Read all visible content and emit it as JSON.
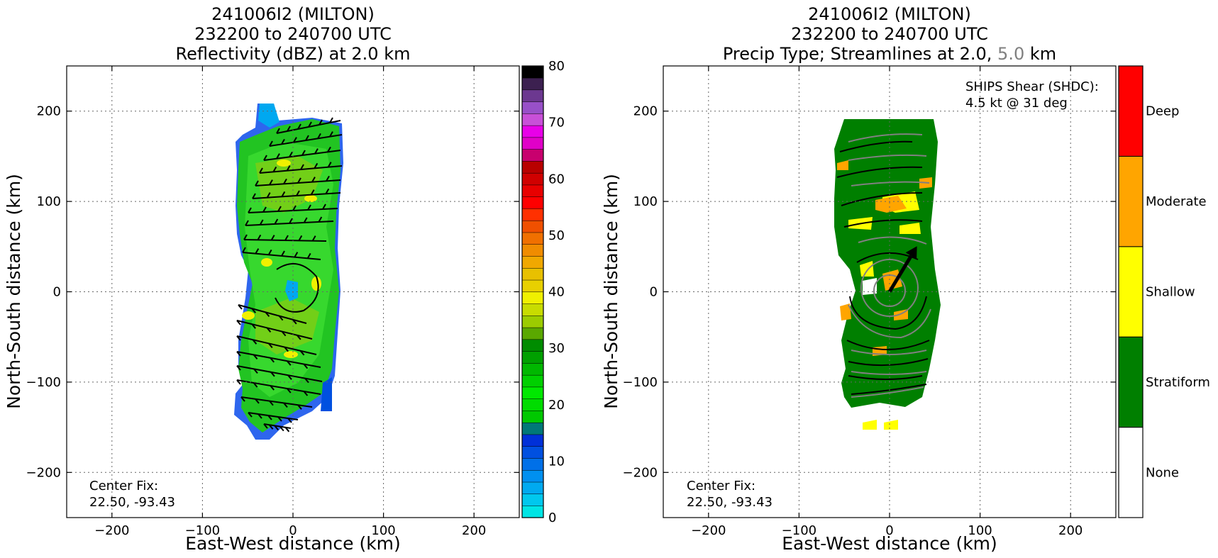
{
  "chart_data": [
    {
      "type": "heatmap",
      "title_lines": [
        "241006I2 (MILTON)",
        "232200 to 240700 UTC",
        "Reflectivity (dBZ) at 2.0 km"
      ],
      "xlabel": "East-West distance (km)",
      "ylabel": "North-South distance (km)",
      "xlim": [
        -250,
        250
      ],
      "ylim": [
        -250,
        250
      ],
      "xticks": [
        -200,
        -100,
        0,
        100,
        200
      ],
      "yticks": [
        -200,
        -100,
        0,
        100,
        200
      ],
      "xtick_labels": [
        "−200",
        "−100",
        "0",
        "100",
        "200"
      ],
      "ytick_labels": [
        "−200",
        "−100",
        "0",
        "100",
        "200"
      ],
      "grid": true,
      "annotation_lines": [
        "Center Fix:",
        "22.50, -93.43"
      ],
      "colorbar": {
        "range": [
          0,
          80
        ],
        "tick_values": [
          0,
          10,
          20,
          30,
          40,
          50,
          60,
          70,
          80
        ],
        "tick_labels": [
          "0",
          "10",
          "20",
          "30",
          "40",
          "50",
          "60",
          "70",
          "80"
        ],
        "colors": [
          "#00e5e5",
          "#00c8ee",
          "#00aaf0",
          "#0090f0",
          "#0070e8",
          "#0050e0",
          "#0030d8",
          "#007878",
          "#00c800",
          "#00dc00",
          "#00e800",
          "#00d000",
          "#00b800",
          "#00a000",
          "#008c00",
          "#5aa800",
          "#9ccc00",
          "#c8dc00",
          "#f0f000",
          "#e8d000",
          "#e8c000",
          "#f0a800",
          "#f08c00",
          "#f07000",
          "#f05000",
          "#ff3000",
          "#ff0000",
          "#e80000",
          "#d00000",
          "#b80000",
          "#c8006e",
          "#e000c8",
          "#e800e8",
          "#c850d8",
          "#9850c8",
          "#6c3890",
          "#3c2050",
          "#000000"
        ]
      }
    },
    {
      "type": "heatmap",
      "title_lines": [
        "241006I2 (MILTON)",
        "232200 to 240700 UTC"
      ],
      "title_line3_parts": [
        "Precip Type; Streamlines at 2.0, ",
        "5.0",
        " km"
      ],
      "xlabel": "East-West distance (km)",
      "ylabel": "North-South distance (km)",
      "xlim": [
        -250,
        250
      ],
      "ylim": [
        -250,
        250
      ],
      "xticks": [
        -200,
        -100,
        0,
        100,
        200
      ],
      "yticks": [
        -200,
        -100,
        0,
        100,
        200
      ],
      "xtick_labels": [
        "−200",
        "−100",
        "0",
        "100",
        "200"
      ],
      "ytick_labels": [
        "−200",
        "−100",
        "0",
        "100",
        "200"
      ],
      "grid": true,
      "annotation_lines": [
        "Center Fix:",
        "22.50, -93.43"
      ],
      "shear_lines": [
        "SHIPS Shear (SHDC):",
        "4.5 kt @ 31 deg"
      ],
      "shear": {
        "speed_kt": 4.5,
        "direction_deg": 31
      },
      "categories": [
        "None",
        "Stratiform",
        "Shallow",
        "Moderate",
        "Deep"
      ],
      "category_colors": [
        "#ffffff",
        "#007f00",
        "#ffff00",
        "#ffa500",
        "#ff0000"
      ],
      "streamline_colors": {
        "2.0 km": "#000000",
        "5.0 km": "#808080"
      }
    }
  ]
}
